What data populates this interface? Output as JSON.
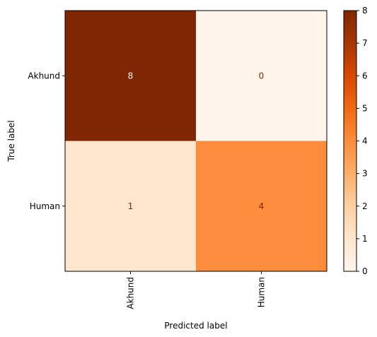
{
  "chart_data": {
    "type": "heatmap",
    "x_categories": [
      "Akhund",
      "Human"
    ],
    "y_categories": [
      "Akhund",
      "Human"
    ],
    "values": [
      [
        8,
        0
      ],
      [
        1,
        4
      ]
    ],
    "xlabel": "Predicted label",
    "ylabel": "True label",
    "colorbar": {
      "min": 0,
      "max": 8,
      "ticks": [
        "0",
        "1",
        "2",
        "3",
        "4",
        "5",
        "6",
        "7",
        "8"
      ],
      "colormap": "Oranges",
      "low_color": "#fff5eb",
      "high_color": "#7f2704"
    }
  }
}
